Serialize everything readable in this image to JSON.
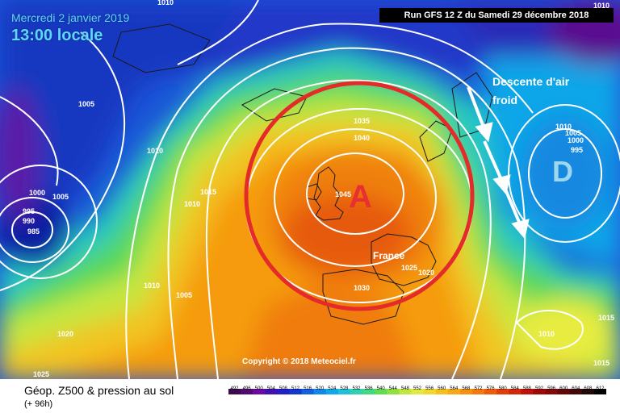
{
  "header": {
    "date": "Mercredi 2 janvier 2019",
    "local_time": "13:00 locale",
    "run_label": "Run GFS 12 Z du Samedi 29 décembre 2018"
  },
  "annotations": {
    "cold_air_line1": "Descente d'air",
    "cold_air_line2": "froid",
    "high_symbol": "A",
    "low_symbol": "D",
    "country": "France",
    "copyright": "Copyright © 2018 Meteociel.fr"
  },
  "isobar_labels": [
    "1010",
    "1005",
    "1010",
    "1035",
    "1040",
    "1045",
    "1015",
    "1010",
    "1005",
    "1000",
    "995",
    "990",
    "985",
    "1010",
    "1010",
    "1005",
    "1000",
    "995",
    "1010",
    "1005",
    "1020",
    "1025",
    "1020",
    "1030",
    "1010",
    "1015",
    "1015",
    "1025"
  ],
  "footer": {
    "title": "Géop. Z500 & pression au sol",
    "subtitle": "(+ 96h)"
  },
  "scale_ticks": [
    "492",
    "496",
    "500",
    "504",
    "508",
    "512",
    "516",
    "520",
    "524",
    "528",
    "532",
    "536",
    "540",
    "544",
    "548",
    "552",
    "556",
    "560",
    "564",
    "568",
    "572",
    "576",
    "580",
    "584",
    "588",
    "592",
    "596",
    "600",
    "604",
    "608",
    "612"
  ],
  "colors": {
    "high_ring": "#e52a2a",
    "arrow": "#ffffff",
    "cold_low": "#0a1aa0",
    "warm_core": "#e65a08"
  }
}
